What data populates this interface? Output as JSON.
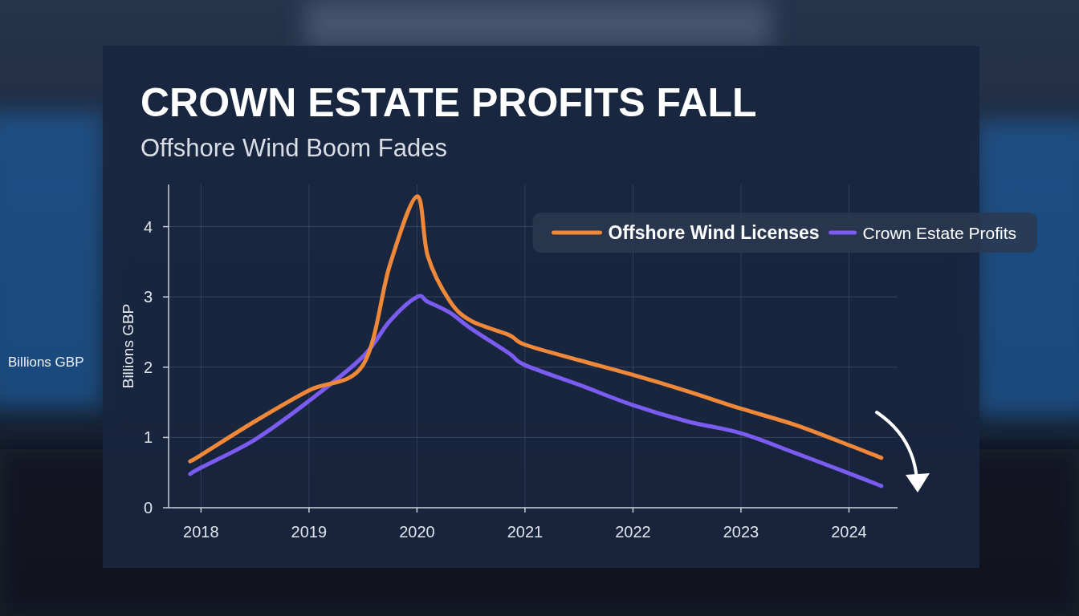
{
  "chart_data": {
    "type": "line",
    "title": "CROWN ESTATE PROFITS FALL",
    "subtitle": "Offshore Wind Boom Fades",
    "ylabel": "Billions GBP",
    "x": [
      2017.9,
      2018,
      2018.5,
      2019,
      2019.5,
      2019.75,
      2020,
      2020.1,
      2020.3,
      2020.5,
      2020.85,
      2021,
      2021.5,
      2022,
      2022.5,
      2023,
      2023.5,
      2024,
      2024.3
    ],
    "series": [
      {
        "name": "Offshore Wind Licenses",
        "color": "#f0883a",
        "values": [
          0.66,
          0.75,
          1.23,
          1.67,
          2.03,
          3.46,
          4.43,
          3.58,
          2.95,
          2.66,
          2.46,
          2.32,
          2.1,
          1.89,
          1.66,
          1.41,
          1.18,
          0.89,
          0.71
        ]
      },
      {
        "name": "Crown Estate Profits",
        "color": "#7b5cf0",
        "values": [
          0.48,
          0.57,
          0.97,
          1.52,
          2.15,
          2.66,
          3.0,
          2.93,
          2.78,
          2.55,
          2.2,
          2.03,
          1.75,
          1.46,
          1.23,
          1.06,
          0.78,
          0.49,
          0.31
        ]
      }
    ],
    "xlim": [
      2017.7,
      2024.45
    ],
    "xticks": [
      2018,
      2019,
      2020,
      2021,
      2022,
      2023,
      2024
    ],
    "ylim": [
      0,
      4.6
    ],
    "yticks": [
      0,
      1,
      2,
      3,
      4
    ],
    "grid": true,
    "legend": "upper right"
  }
}
